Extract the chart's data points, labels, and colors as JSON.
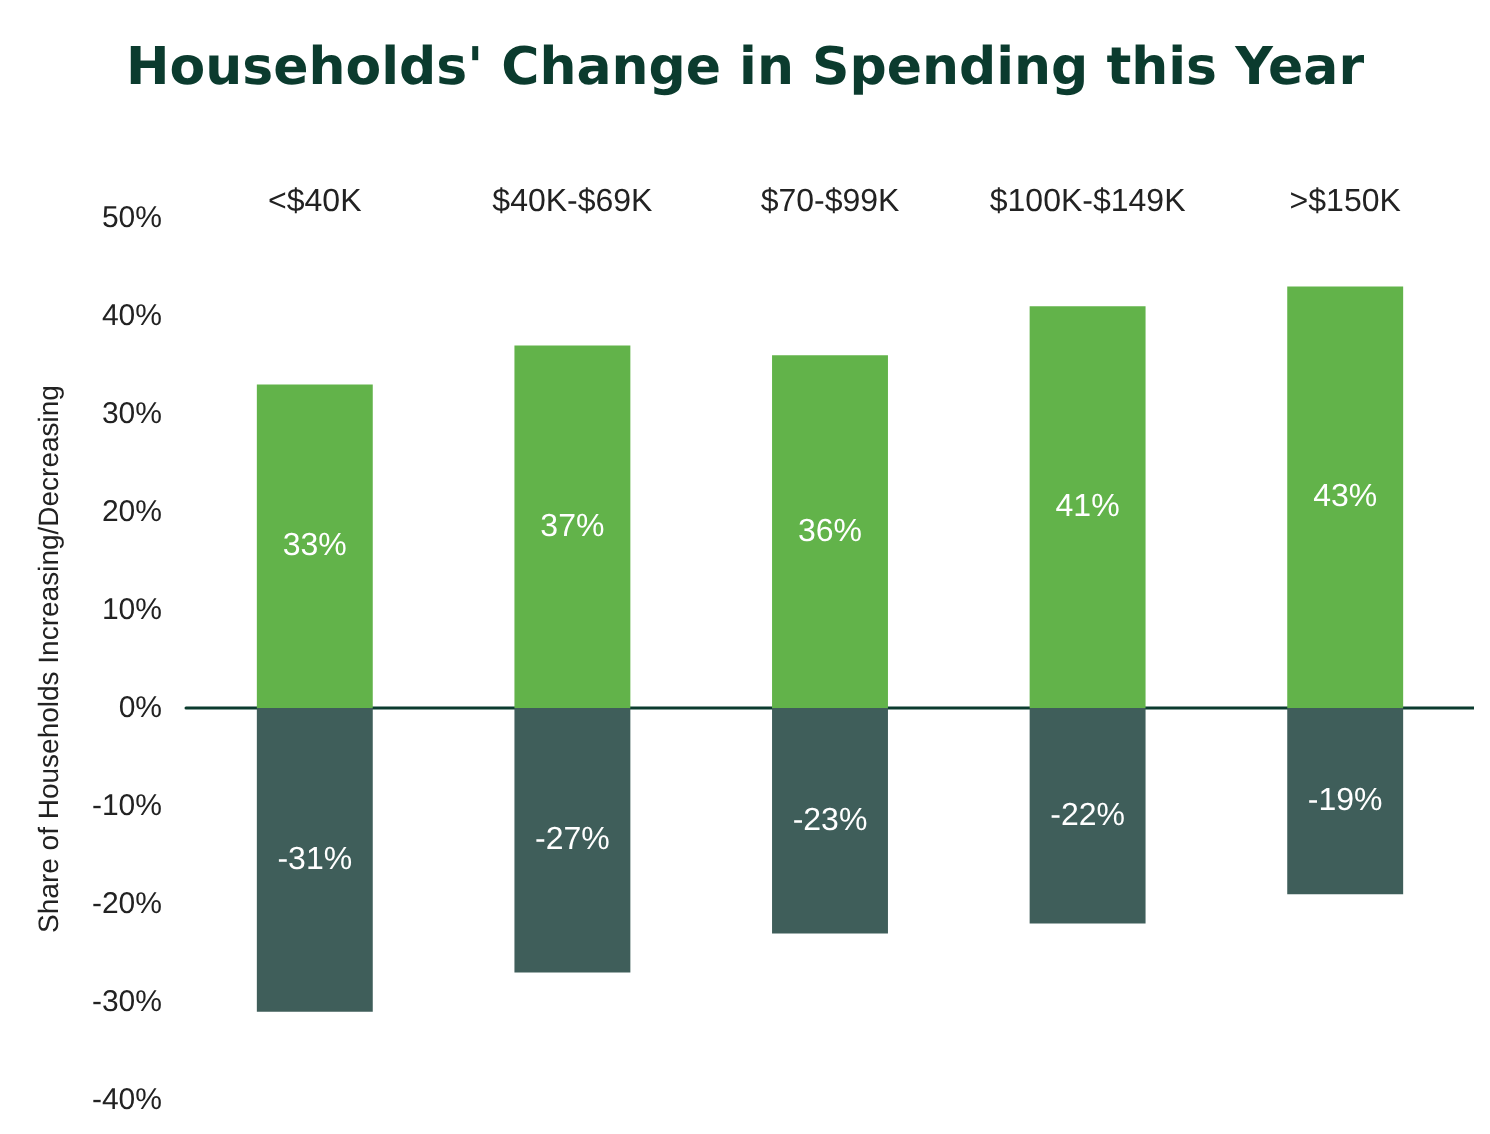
{
  "chart_data": {
    "type": "bar",
    "title": "Households' Change in Spending this Year",
    "ylabel": "Share of Households Increasing/Decreasing",
    "categories": [
      "<$40K",
      "$40K-$69K",
      "$70-$99K",
      "$100K-$149K",
      ">$150K"
    ],
    "stacked": true,
    "series": [
      {
        "color": "#62b34a",
        "values": [
          33,
          37,
          36,
          41,
          43
        ],
        "value_labels": [
          "33%",
          "37%",
          "36%",
          "41%",
          "43%"
        ]
      },
      {
        "color": "#3f5e5a",
        "values": [
          -31,
          -27,
          -23,
          -22,
          -19
        ],
        "value_labels": [
          "-31%",
          "-27%",
          "-23%",
          "-22%",
          "-19%"
        ]
      }
    ],
    "ylim": [
      -40,
      50
    ],
    "yticks": [
      {
        "value": -40,
        "label": "-40%"
      },
      {
        "value": -30,
        "label": "-30%"
      },
      {
        "value": -20,
        "label": "-20%"
      },
      {
        "value": -10,
        "label": "-10%"
      },
      {
        "value": 0,
        "label": "0%"
      },
      {
        "value": 10,
        "label": "10%"
      },
      {
        "value": 20,
        "label": "20%"
      },
      {
        "value": 30,
        "label": "30%"
      },
      {
        "value": 40,
        "label": "40%"
      },
      {
        "value": 50,
        "label": "50%"
      }
    ],
    "grid": false
  }
}
